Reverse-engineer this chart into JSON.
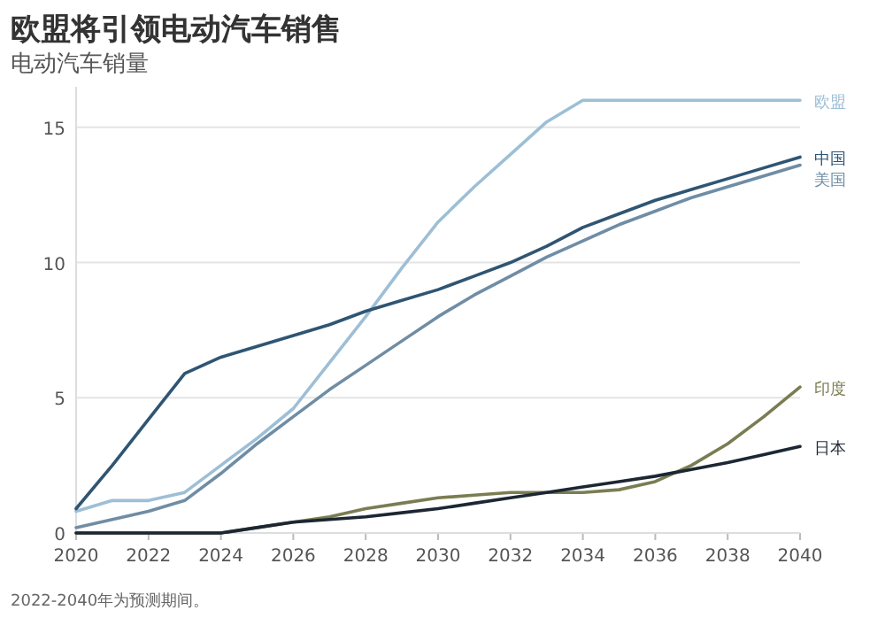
{
  "chart_data": {
    "type": "line",
    "title": "欧盟将引领电动汽车销售",
    "subtitle": "电动汽车销量",
    "x": [
      2020,
      2021,
      2022,
      2023,
      2024,
      2025,
      2026,
      2027,
      2028,
      2029,
      2030,
      2031,
      2032,
      2033,
      2034,
      2035,
      2036,
      2037,
      2038,
      2039,
      2040
    ],
    "series": [
      {
        "name": "欧盟",
        "color": "#9dbfd6",
        "values": [
          0.8,
          1.2,
          1.2,
          1.5,
          2.5,
          3.5,
          4.6,
          6.3,
          8.0,
          9.8,
          11.5,
          12.8,
          14.0,
          15.2,
          16.0,
          16.0,
          16.0,
          16.0,
          16.0,
          16.0,
          16.0
        ]
      },
      {
        "name": "中国",
        "color": "#2f5573",
        "values": [
          0.9,
          2.5,
          4.2,
          5.9,
          6.5,
          6.9,
          7.3,
          7.7,
          8.2,
          8.6,
          9.0,
          9.5,
          10.0,
          10.6,
          11.3,
          11.8,
          12.3,
          12.7,
          13.1,
          13.5,
          13.9
        ]
      },
      {
        "name": "美国",
        "color": "#6f8da5",
        "values": [
          0.2,
          0.5,
          0.8,
          1.2,
          2.2,
          3.3,
          4.3,
          5.3,
          6.2,
          7.1,
          8.0,
          8.8,
          9.5,
          10.2,
          10.8,
          11.4,
          11.9,
          12.4,
          12.8,
          13.2,
          13.6
        ]
      },
      {
        "name": "印度",
        "color": "#7a7d52",
        "values": [
          0,
          0,
          0,
          0,
          0,
          0.2,
          0.4,
          0.6,
          0.9,
          1.1,
          1.3,
          1.4,
          1.5,
          1.5,
          1.5,
          1.6,
          1.9,
          2.5,
          3.3,
          4.3,
          5.4
        ]
      },
      {
        "name": "日本",
        "color": "#1c2733",
        "values": [
          0,
          0,
          0,
          0,
          0,
          0.2,
          0.4,
          0.5,
          0.6,
          0.75,
          0.9,
          1.1,
          1.3,
          1.5,
          1.7,
          1.9,
          2.1,
          2.35,
          2.6,
          2.9,
          3.2
        ]
      }
    ],
    "xlim": [
      2020,
      2040
    ],
    "xticks": [
      2020,
      2022,
      2024,
      2026,
      2028,
      2030,
      2032,
      2034,
      2036,
      2038,
      2040
    ],
    "ylim": [
      0,
      16.5
    ],
    "yticks": [
      0,
      5,
      10,
      15
    ],
    "grid": "y",
    "annotations": [
      "2022-2040年为预测期间。"
    ]
  }
}
